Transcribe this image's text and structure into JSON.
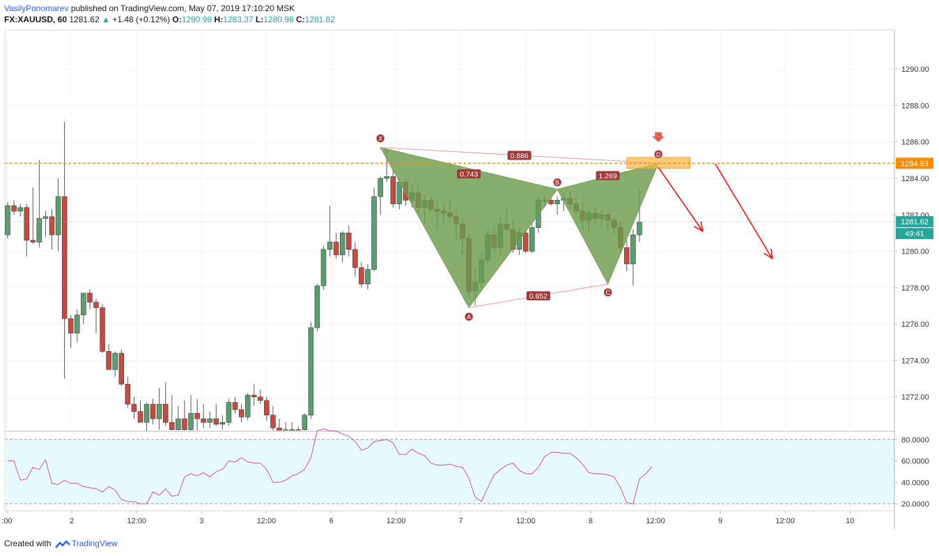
{
  "header": {
    "author": "VasilyPonomarev",
    "published_text": "published on TradingView.com,",
    "datetime": "May 07, 2019 17:10:20 MSK",
    "symbol": "FX:XAUUSD, 60",
    "last": "1281.62",
    "change": "+1.48 (+0.12%)",
    "o_label": "O:",
    "o_value": "1280.98",
    "h_label": "H:",
    "h_value": "1283.37",
    "l_label": "L:",
    "l_value": "1280.98",
    "c_label": "C:",
    "c_value": "1281.62"
  },
  "footer": {
    "created_with": "Created with",
    "brand": "TradingView"
  },
  "colors": {
    "up": "#26a69a",
    "down": "#ef5350",
    "candle_up": "#5a9e6f",
    "candle_down": "#c84b40",
    "pattern_fill": "#6a9a4a",
    "level": "#ff8c00",
    "arrow": "#ff0000",
    "rsi_line": "#d44fa0",
    "rsi_bg": "#e6fafd",
    "grid": "#f0f3fa",
    "label_bg": "#a33a3a"
  },
  "chart_data": {
    "type": "candlestick",
    "symbol": "FX:XAUUSD",
    "interval": "60",
    "y_ticks": [
      "1290.00",
      "1288.00",
      "1286.00",
      "1284.00",
      "1282.00",
      "1280.00",
      "1278.00",
      "1276.00",
      "1274.00",
      "1272.00"
    ],
    "y_tick_values": [
      1290,
      1288,
      1286,
      1284,
      1282,
      1280,
      1278,
      1276,
      1274,
      1272
    ],
    "ylim": [
      1270.15,
      1292.15
    ],
    "x_ticks": [
      ":00",
      "2",
      "12:00",
      "3",
      "12:00",
      "6",
      "12:00",
      "7",
      "12:00",
      "8",
      "12:00",
      "9",
      "12:00",
      "10"
    ],
    "bar_index_range": [
      0,
      140
    ],
    "candles": [
      [
        1280.9,
        1282.7,
        1280.7,
        1282.5
      ],
      [
        1282.5,
        1282.8,
        1282.0,
        1282.2
      ],
      [
        1282.2,
        1282.6,
        1281.9,
        1282.4
      ],
      [
        1282.4,
        1282.6,
        1279.7,
        1280.6
      ],
      [
        1280.6,
        1283.5,
        1280.4,
        1280.5
      ],
      [
        1280.5,
        1285.0,
        1280.2,
        1281.8
      ],
      [
        1281.8,
        1282.2,
        1280.8,
        1281.9
      ],
      [
        1281.9,
        1282.3,
        1280.1,
        1280.9
      ],
      [
        1280.9,
        1284.0,
        1280.0,
        1283.0
      ],
      [
        1283.0,
        1287.1,
        1273.0,
        1276.3
      ],
      [
        1276.3,
        1276.5,
        1274.7,
        1275.5
      ],
      [
        1275.5,
        1276.8,
        1275.0,
        1276.5
      ],
      [
        1276.5,
        1277.7,
        1276.0,
        1277.7
      ],
      [
        1277.7,
        1277.9,
        1276.8,
        1277.2
      ],
      [
        1277.2,
        1277.4,
        1275.5,
        1276.9
      ],
      [
        1276.9,
        1277.1,
        1274.4,
        1274.5
      ],
      [
        1274.5,
        1274.9,
        1273.5,
        1273.5
      ],
      [
        1273.5,
        1274.5,
        1273.1,
        1274.4
      ],
      [
        1274.4,
        1274.6,
        1272.6,
        1272.7
      ],
      [
        1272.7,
        1273.1,
        1271.4,
        1271.6
      ],
      [
        1271.6,
        1272.0,
        1270.8,
        1271.2
      ],
      [
        1271.2,
        1271.8,
        1270.6,
        1270.6
      ],
      [
        1270.6,
        1271.7,
        1270.1,
        1271.6
      ],
      [
        1271.6,
        1271.9,
        1270.5,
        1270.8
      ],
      [
        1270.8,
        1272.5,
        1270.2,
        1271.6
      ],
      [
        1271.6,
        1272.8,
        1270.4,
        1270.6
      ],
      [
        1270.6,
        1272.1,
        1270.2,
        1270.2
      ],
      [
        1270.2,
        1271.5,
        1270.0,
        1270.8
      ],
      [
        1270.8,
        1271.8,
        1270.1,
        1270.2
      ],
      [
        1270.2,
        1272.1,
        1270.0,
        1271.1
      ],
      [
        1271.1,
        1271.9,
        1270.0,
        1270.8
      ],
      [
        1270.8,
        1271.6,
        1270.3,
        1270.6
      ],
      [
        1270.6,
        1271.2,
        1270.3,
        1270.8
      ],
      [
        1270.8,
        1271.6,
        1270.4,
        1270.5
      ],
      [
        1270.5,
        1271.0,
        1270.2,
        1270.6
      ],
      [
        1270.6,
        1271.9,
        1270.4,
        1271.7
      ],
      [
        1271.7,
        1272.0,
        1271.1,
        1271.3
      ],
      [
        1271.3,
        1271.6,
        1270.6,
        1270.9
      ],
      [
        1270.9,
        1272.2,
        1270.7,
        1272.1
      ],
      [
        1272.1,
        1272.7,
        1271.5,
        1272.0
      ],
      [
        1272.0,
        1272.4,
        1271.6,
        1271.8
      ],
      [
        1271.8,
        1272.0,
        1270.7,
        1271.0
      ],
      [
        1271.0,
        1271.5,
        1270.0,
        1270.3
      ],
      [
        1270.3,
        1270.8,
        1269.9,
        1270.1
      ],
      [
        1270.1,
        1270.6,
        1269.8,
        1270.2
      ],
      [
        1270.2,
        1270.6,
        1270.0,
        1270.1
      ],
      [
        1270.1,
        1270.4,
        1270.0,
        1270.2
      ],
      [
        1270.2,
        1271.1,
        1270.0,
        1271.0
      ],
      [
        1271.0,
        1276.1,
        1270.8,
        1275.8
      ],
      [
        1275.8,
        1278.2,
        1275.6,
        1278.1
      ],
      [
        1278.1,
        1280.3,
        1277.9,
        1280.1
      ],
      [
        1280.1,
        1282.5,
        1279.7,
        1280.5
      ],
      [
        1280.5,
        1281.0,
        1279.6,
        1279.8
      ],
      [
        1279.8,
        1281.1,
        1279.4,
        1281.0
      ],
      [
        1281.0,
        1281.4,
        1279.7,
        1280.1
      ],
      [
        1280.1,
        1280.5,
        1278.6,
        1279.1
      ],
      [
        1279.1,
        1279.4,
        1278.0,
        1278.2
      ],
      [
        1278.2,
        1279.3,
        1277.9,
        1279.0
      ],
      [
        1279.0,
        1283.5,
        1278.9,
        1283.0
      ],
      [
        1283.0,
        1284.1,
        1282.0,
        1284.0
      ],
      [
        1284.0,
        1285.6,
        1283.8,
        1284.1
      ],
      [
        1284.1,
        1284.5,
        1282.4,
        1282.6
      ],
      [
        1282.6,
        1284.0,
        1282.3,
        1283.8
      ],
      [
        1283.8,
        1284.0,
        1282.5,
        1282.8
      ],
      [
        1282.8,
        1283.7,
        1282.4,
        1283.2
      ],
      [
        1283.2,
        1283.6,
        1282.1,
        1282.4
      ],
      [
        1282.4,
        1283.1,
        1281.5,
        1282.8
      ],
      [
        1282.8,
        1283.0,
        1282.2,
        1282.3
      ],
      [
        1282.3,
        1282.8,
        1281.2,
        1282.2
      ],
      [
        1282.2,
        1282.6,
        1281.5,
        1282.1
      ],
      [
        1282.1,
        1282.8,
        1281.6,
        1281.9
      ],
      [
        1281.9,
        1282.3,
        1280.6,
        1281.5
      ],
      [
        1281.5,
        1281.8,
        1279.8,
        1280.7
      ],
      [
        1280.7,
        1281.0,
        1277.5,
        1277.8
      ],
      [
        1277.8,
        1279.1,
        1277.0,
        1278.3
      ],
      [
        1278.3,
        1280.0,
        1278.0,
        1279.5
      ],
      [
        1279.5,
        1281.2,
        1279.2,
        1280.9
      ],
      [
        1280.9,
        1281.4,
        1280.0,
        1280.2
      ],
      [
        1280.2,
        1281.9,
        1279.8,
        1281.5
      ],
      [
        1281.5,
        1282.4,
        1281.1,
        1281.2
      ],
      [
        1281.2,
        1281.7,
        1279.9,
        1280.1
      ],
      [
        1280.1,
        1281.3,
        1279.8,
        1281.0
      ],
      [
        1281.0,
        1281.2,
        1279.9,
        1280.0
      ],
      [
        1280.0,
        1281.5,
        1279.9,
        1281.3
      ],
      [
        1281.3,
        1283.0,
        1281.0,
        1282.8
      ],
      [
        1282.8,
        1283.1,
        1282.4,
        1282.8
      ],
      [
        1282.8,
        1283.0,
        1282.5,
        1282.6
      ],
      [
        1282.6,
        1283.0,
        1282.0,
        1282.8
      ],
      [
        1282.8,
        1283.2,
        1282.2,
        1282.9
      ],
      [
        1282.9,
        1283.3,
        1282.3,
        1282.6
      ],
      [
        1282.6,
        1282.9,
        1282.0,
        1282.2
      ],
      [
        1282.2,
        1282.7,
        1281.2,
        1281.7
      ],
      [
        1281.7,
        1282.3,
        1281.0,
        1282.1
      ],
      [
        1282.1,
        1282.4,
        1281.5,
        1281.8
      ],
      [
        1281.8,
        1282.2,
        1281.4,
        1282.0
      ],
      [
        1282.0,
        1282.1,
        1281.2,
        1281.7
      ],
      [
        1281.7,
        1281.9,
        1280.9,
        1281.3
      ],
      [
        1281.3,
        1281.6,
        1279.9,
        1280.2
      ],
      [
        1280.2,
        1280.6,
        1278.9,
        1279.3
      ],
      [
        1279.3,
        1281.2,
        1278.1,
        1280.9
      ],
      [
        1280.9,
        1283.4,
        1280.5,
        1281.6
      ]
    ],
    "levels": [
      {
        "price": 1284.83,
        "label": "1284.83",
        "color": "#ff8c00",
        "style": "dashed"
      },
      {
        "price": 1281.62,
        "label": "1281.62",
        "color": "#26a69a",
        "style": "dotted"
      }
    ],
    "countdown": "49:41",
    "harmonic_pattern": {
      "points": [
        {
          "name": "X",
          "bar": 59,
          "price": 1285.7
        },
        {
          "name": "A",
          "bar": 73,
          "price": 1276.9
        },
        {
          "name": "B",
          "bar": 87,
          "price": 1283.4
        },
        {
          "name": "C",
          "bar": 95,
          "price": 1278.2
        },
        {
          "name": "D",
          "bar": 103,
          "price": 1284.83
        }
      ],
      "ratios": [
        {
          "label": "0.886",
          "from": "X",
          "to": "D"
        },
        {
          "label": "0.743",
          "from": "X",
          "to": "B"
        },
        {
          "label": "1.269",
          "from": "B",
          "to": "D"
        },
        {
          "label": "0.852",
          "from": "A",
          "to": "C"
        }
      ]
    },
    "zone": {
      "bar_from": 98,
      "bar_to": 108,
      "price_from": 1284.55,
      "price_to": 1285.15
    },
    "arrows": [
      {
        "from": [
          103,
          1284.6
        ],
        "to": [
          110,
          1281.1
        ],
        "color": "#ff0000"
      },
      {
        "from": [
          112,
          1284.8
        ],
        "to": [
          121,
          1279.6
        ],
        "color": "#ff0000"
      }
    ],
    "down_marker": {
      "bar": 103,
      "price": 1286.0
    },
    "rsi": {
      "y_ticks": [
        "80.0000",
        "60.0000",
        "40.0000",
        "20.0000"
      ],
      "y_tick_values": [
        80,
        60,
        40,
        20
      ],
      "ylim": [
        13.5,
        87
      ],
      "upper_band": 80,
      "lower_band": 20,
      "values": [
        60,
        60,
        42,
        43,
        54,
        52,
        61,
        39,
        38,
        42,
        39,
        39,
        36,
        35,
        34,
        31,
        36,
        33,
        24,
        22,
        22,
        20,
        20,
        31,
        28,
        34,
        27,
        28,
        45,
        48,
        46,
        49,
        45,
        50,
        52,
        60,
        59,
        63,
        59,
        58,
        58,
        52,
        40,
        40,
        42,
        46,
        48,
        52,
        63,
        88,
        90,
        88,
        88,
        85,
        83,
        78,
        70,
        72,
        78,
        79,
        80,
        77,
        66,
        66,
        71,
        67,
        65,
        58,
        56,
        56,
        57,
        55,
        54,
        44,
        26,
        22,
        35,
        47,
        52,
        56,
        58,
        51,
        48,
        48,
        54,
        64,
        68,
        68,
        67,
        67,
        63,
        57,
        49,
        48,
        48,
        47,
        45,
        35,
        21,
        20,
        43,
        48,
        55
      ]
    }
  }
}
